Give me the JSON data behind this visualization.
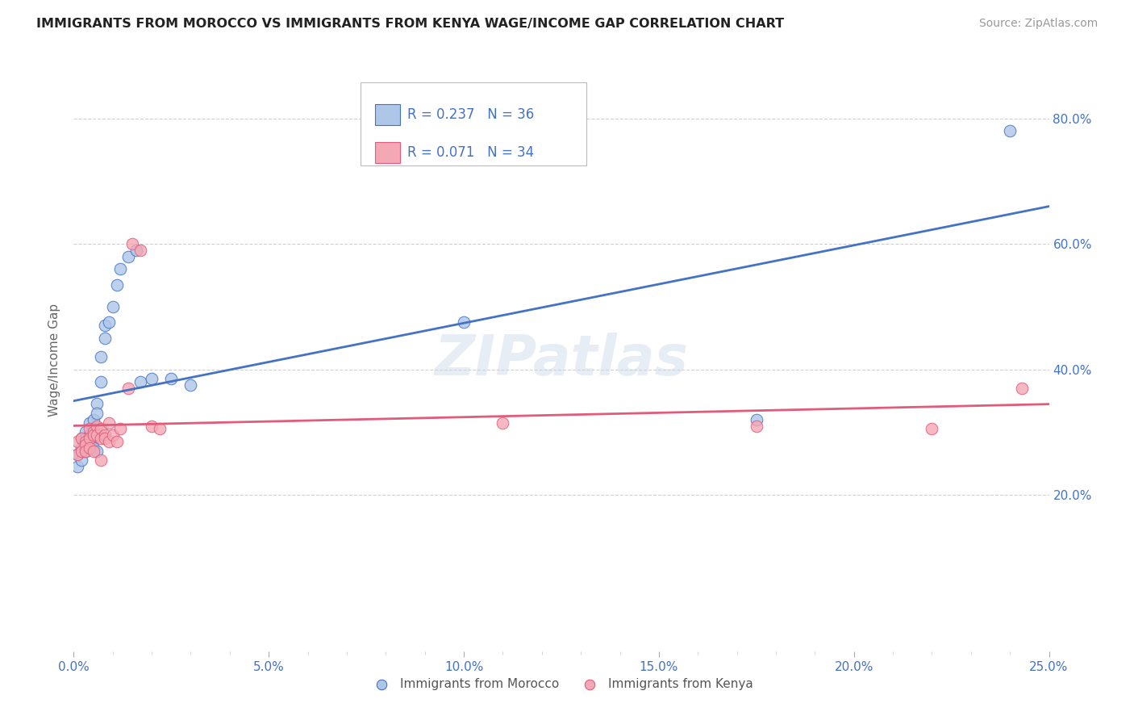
{
  "title": "IMMIGRANTS FROM MOROCCO VS IMMIGRANTS FROM KENYA WAGE/INCOME GAP CORRELATION CHART",
  "source": "Source: ZipAtlas.com",
  "ylabel": "Wage/Income Gap",
  "xlim": [
    0.0,
    0.25
  ],
  "ylim": [
    -0.05,
    0.88
  ],
  "xtick_labels": [
    "0.0%",
    "",
    "",
    "",
    "",
    "5.0%",
    "",
    "",
    "",
    "",
    "10.0%",
    "",
    "",
    "",
    "",
    "15.0%",
    "",
    "",
    "",
    "",
    "20.0%",
    "",
    "",
    "",
    "",
    "25.0%"
  ],
  "xtick_vals": [
    0.0,
    0.01,
    0.02,
    0.03,
    0.04,
    0.05,
    0.06,
    0.07,
    0.08,
    0.09,
    0.1,
    0.11,
    0.12,
    0.13,
    0.14,
    0.15,
    0.16,
    0.17,
    0.18,
    0.19,
    0.2,
    0.21,
    0.22,
    0.23,
    0.24,
    0.25
  ],
  "xtick_major_labels": [
    "0.0%",
    "5.0%",
    "10.0%",
    "15.0%",
    "20.0%",
    "25.0%"
  ],
  "xtick_major_vals": [
    0.0,
    0.05,
    0.1,
    0.15,
    0.2,
    0.25
  ],
  "ytick_labels": [
    "20.0%",
    "40.0%",
    "60.0%",
    "80.0%"
  ],
  "ytick_vals": [
    0.2,
    0.4,
    0.6,
    0.8
  ],
  "morocco_color": "#aec6e8",
  "kenya_color": "#f4a7b4",
  "morocco_line_color": "#4472C4",
  "kenya_line_color": "#E05C7A",
  "morocco_R": 0.237,
  "morocco_N": 36,
  "kenya_R": 0.071,
  "kenya_N": 34,
  "legend_color": "#4472C4",
  "watermark": "ZIPatlas",
  "morocco_x": [
    0.001,
    0.001,
    0.002,
    0.002,
    0.002,
    0.003,
    0.003,
    0.003,
    0.003,
    0.004,
    0.004,
    0.004,
    0.005,
    0.005,
    0.005,
    0.005,
    0.006,
    0.006,
    0.006,
    0.007,
    0.007,
    0.008,
    0.008,
    0.009,
    0.01,
    0.011,
    0.012,
    0.014,
    0.016,
    0.017,
    0.02,
    0.025,
    0.03,
    0.1,
    0.175,
    0.24
  ],
  "morocco_y": [
    0.265,
    0.245,
    0.29,
    0.275,
    0.255,
    0.3,
    0.29,
    0.28,
    0.27,
    0.315,
    0.295,
    0.285,
    0.32,
    0.305,
    0.29,
    0.275,
    0.345,
    0.33,
    0.27,
    0.38,
    0.42,
    0.45,
    0.47,
    0.475,
    0.5,
    0.535,
    0.56,
    0.58,
    0.59,
    0.38,
    0.385,
    0.385,
    0.375,
    0.475,
    0.32,
    0.78
  ],
  "kenya_x": [
    0.001,
    0.001,
    0.002,
    0.002,
    0.003,
    0.003,
    0.003,
    0.004,
    0.004,
    0.004,
    0.005,
    0.005,
    0.005,
    0.006,
    0.006,
    0.007,
    0.007,
    0.007,
    0.008,
    0.008,
    0.009,
    0.009,
    0.01,
    0.011,
    0.012,
    0.014,
    0.015,
    0.017,
    0.02,
    0.022,
    0.11,
    0.175,
    0.22,
    0.243
  ],
  "kenya_y": [
    0.285,
    0.265,
    0.29,
    0.27,
    0.285,
    0.28,
    0.27,
    0.305,
    0.29,
    0.275,
    0.3,
    0.295,
    0.27,
    0.31,
    0.295,
    0.305,
    0.29,
    0.255,
    0.295,
    0.29,
    0.315,
    0.285,
    0.295,
    0.285,
    0.305,
    0.37,
    0.6,
    0.59,
    0.31,
    0.305,
    0.315,
    0.31,
    0.305,
    0.37
  ],
  "background_color": "#ffffff",
  "grid_color": "#d0d0d0"
}
